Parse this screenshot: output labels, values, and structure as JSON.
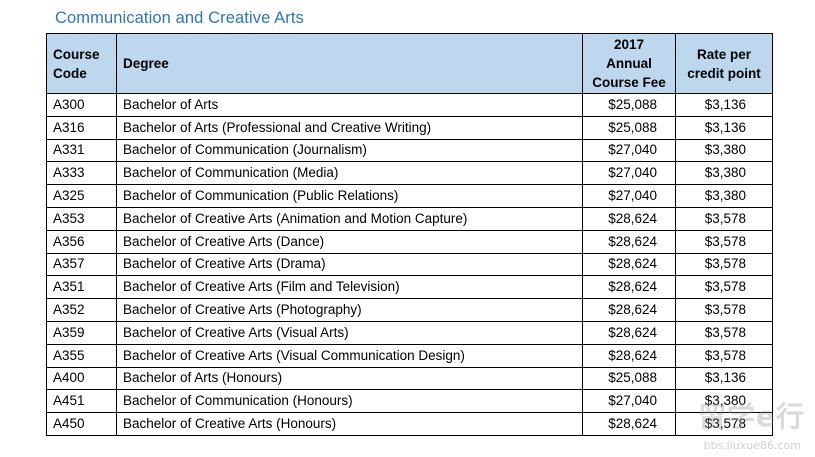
{
  "section_title": "Communication and Creative Arts",
  "table": {
    "headers": {
      "code_line1": "Course",
      "code_line2": "Code",
      "degree": "Degree",
      "fee_line1": "2017",
      "fee_line2": "Annual",
      "fee_line3": "Course Fee",
      "rate_line1": "Rate per",
      "rate_line2": "credit point"
    },
    "rows": [
      {
        "code": "A300",
        "degree": "Bachelor of Arts",
        "fee": "$25,088",
        "rate": "$3,136"
      },
      {
        "code": "A316",
        "degree": "Bachelor of Arts (Professional and Creative Writing)",
        "fee": "$25,088",
        "rate": "$3,136"
      },
      {
        "code": "A331",
        "degree": "Bachelor of Communication (Journalism)",
        "fee": "$27,040",
        "rate": "$3,380"
      },
      {
        "code": "A333",
        "degree": "Bachelor of Communication (Media)",
        "fee": "$27,040",
        "rate": "$3,380"
      },
      {
        "code": "A325",
        "degree": "Bachelor of Communication (Public Relations)",
        "fee": "$27,040",
        "rate": "$3,380"
      },
      {
        "code": "A353",
        "degree": "Bachelor of Creative Arts (Animation and Motion Capture)",
        "fee": "$28,624",
        "rate": "$3,578"
      },
      {
        "code": "A356",
        "degree": "Bachelor of Creative Arts (Dance)",
        "fee": "$28,624",
        "rate": "$3,578"
      },
      {
        "code": "A357",
        "degree": "Bachelor of Creative Arts (Drama)",
        "fee": "$28,624",
        "rate": "$3,578"
      },
      {
        "code": "A351",
        "degree": "Bachelor of Creative Arts (Film and Television)",
        "fee": "$28,624",
        "rate": "$3,578"
      },
      {
        "code": "A352",
        "degree": "Bachelor of Creative Arts (Photography)",
        "fee": "$28,624",
        "rate": "$3,578"
      },
      {
        "code": "A359",
        "degree": "Bachelor of Creative Arts (Visual Arts)",
        "fee": "$28,624",
        "rate": "$3,578"
      },
      {
        "code": "A355",
        "degree": "Bachelor of Creative Arts (Visual Communication Design)",
        "fee": "$28,624",
        "rate": "$3,578"
      },
      {
        "code": "A400",
        "degree": "Bachelor of Arts (Honours)",
        "fee": "$25,088",
        "rate": "$3,136"
      },
      {
        "code": "A451",
        "degree": "Bachelor of Communication (Honours)",
        "fee": "$27,040",
        "rate": "$3,380"
      },
      {
        "code": "A450",
        "degree": "Bachelor of Creative Arts (Honours)",
        "fee": "$28,624",
        "rate": "$3,578"
      }
    ]
  },
  "watermark": {
    "main": "留学e行",
    "sub": "bbs.liuxue86.com"
  }
}
